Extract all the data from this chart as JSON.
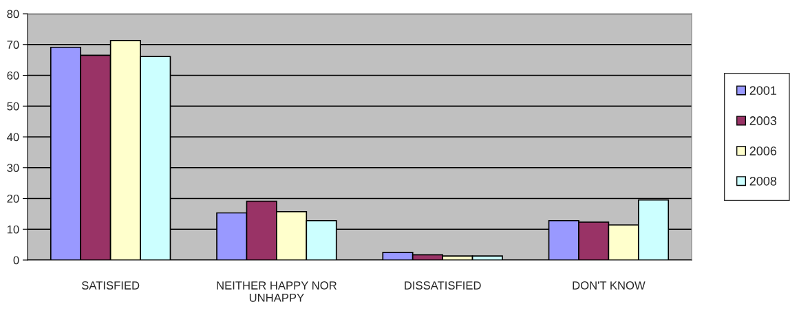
{
  "chart_data": {
    "type": "bar",
    "categories": [
      "SATISFIED",
      "NEITHER HAPPY NOR\nUNHAPPY",
      "DISSATISFIED",
      "DON'T KNOW"
    ],
    "series": [
      {
        "name": "2001",
        "color": "#9999ff",
        "values": [
          69.1,
          15.3,
          2.5,
          12.8
        ]
      },
      {
        "name": "2003",
        "color": "#993366",
        "values": [
          66.5,
          19.1,
          1.7,
          12.3
        ]
      },
      {
        "name": "2006",
        "color": "#ffffcc",
        "values": [
          71.3,
          15.7,
          1.3,
          11.4
        ]
      },
      {
        "name": "2008",
        "color": "#ccffff",
        "values": [
          66.1,
          12.8,
          1.3,
          19.5
        ]
      }
    ],
    "ylim": [
      0,
      80
    ],
    "yticks": [
      0,
      10,
      20,
      30,
      40,
      50,
      60,
      70,
      80
    ],
    "grid": "y",
    "legend": "right"
  }
}
